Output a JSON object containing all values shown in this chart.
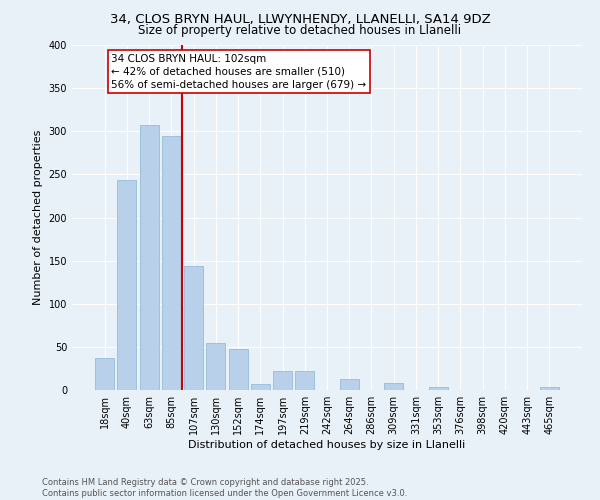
{
  "title_line1": "34, CLOS BRYN HAUL, LLWYNHENDY, LLANELLI, SA14 9DZ",
  "title_line2": "Size of property relative to detached houses in Llanelli",
  "xlabel": "Distribution of detached houses by size in Llanelli",
  "ylabel": "Number of detached properties",
  "bar_labels": [
    "18sqm",
    "40sqm",
    "63sqm",
    "85sqm",
    "107sqm",
    "130sqm",
    "152sqm",
    "174sqm",
    "197sqm",
    "219sqm",
    "242sqm",
    "264sqm",
    "286sqm",
    "309sqm",
    "331sqm",
    "353sqm",
    "376sqm",
    "398sqm",
    "420sqm",
    "443sqm",
    "465sqm"
  ],
  "bar_heights": [
    37,
    243,
    307,
    295,
    144,
    55,
    47,
    7,
    22,
    22,
    0,
    13,
    0,
    8,
    0,
    3,
    0,
    0,
    0,
    0,
    3
  ],
  "bar_color": "#b8d0ea",
  "bar_edge_color": "#8ab4d4",
  "vline_x_index": 4,
  "vline_color": "#cc0000",
  "annotation_text": "34 CLOS BRYN HAUL: 102sqm\n← 42% of detached houses are smaller (510)\n56% of semi-detached houses are larger (679) →",
  "annotation_box_color": "#ffffff",
  "annotation_box_edge": "#cc0000",
  "annotation_fontsize": 7.5,
  "ylim": [
    0,
    400
  ],
  "yticks": [
    0,
    50,
    100,
    150,
    200,
    250,
    300,
    350,
    400
  ],
  "background_color": "#e8f0f8",
  "grid_color": "#ffffff",
  "footnote": "Contains HM Land Registry data © Crown copyright and database right 2025.\nContains public sector information licensed under the Open Government Licence v3.0.",
  "title_fontsize": 9.5,
  "subtitle_fontsize": 8.5,
  "axis_label_fontsize": 8,
  "tick_fontsize": 7,
  "ylabel_fontsize": 8
}
